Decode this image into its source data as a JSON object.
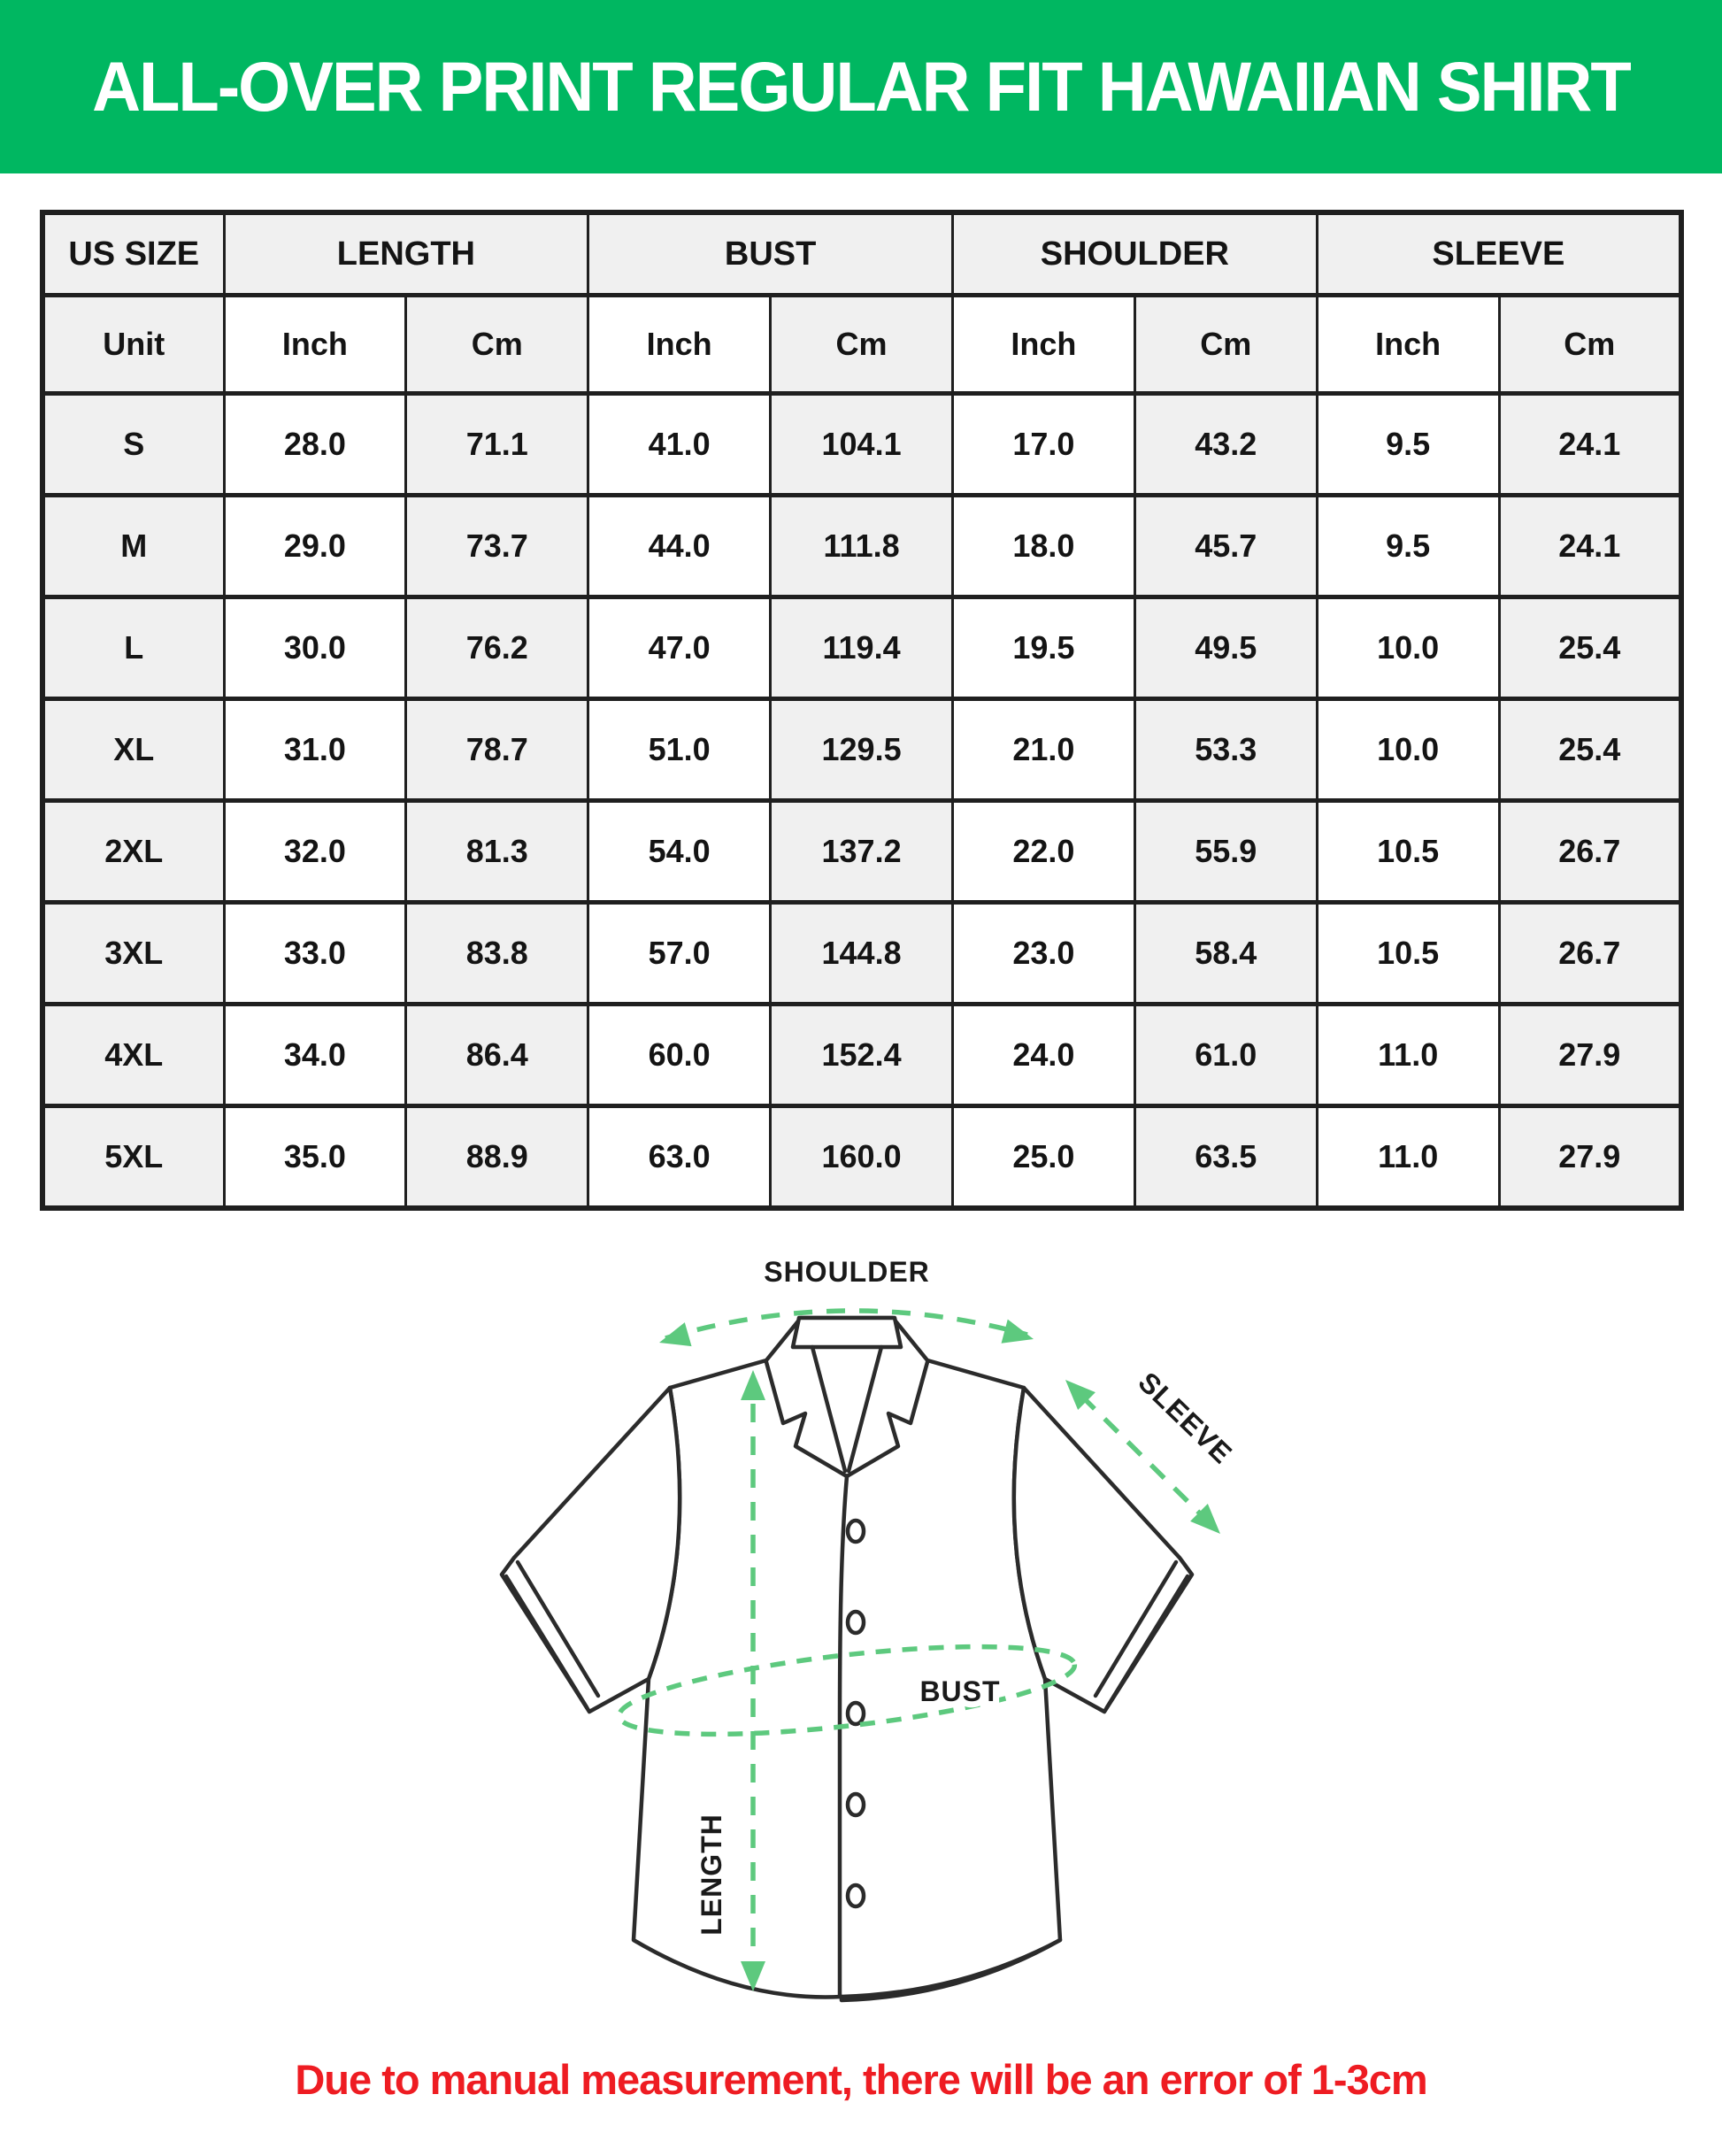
{
  "header": {
    "title": "ALL-OVER PRINT REGULAR FIT HAWAIIAN SHIRT"
  },
  "size_table": {
    "column_groups": [
      {
        "label": "US SIZE",
        "span": 1
      },
      {
        "label": "LENGTH",
        "span": 2
      },
      {
        "label": "BUST",
        "span": 2
      },
      {
        "label": "SHOULDER",
        "span": 2
      },
      {
        "label": "SLEEVE",
        "span": 2
      }
    ],
    "unit_header": [
      "Unit",
      "Inch",
      "Cm",
      "Inch",
      "Cm",
      "Inch",
      "Cm",
      "Inch",
      "Cm"
    ],
    "rows": [
      [
        "S",
        "28.0",
        "71.1",
        "41.0",
        "104.1",
        "17.0",
        "43.2",
        "9.5",
        "24.1"
      ],
      [
        "M",
        "29.0",
        "73.7",
        "44.0",
        "111.8",
        "18.0",
        "45.7",
        "9.5",
        "24.1"
      ],
      [
        "L",
        "30.0",
        "76.2",
        "47.0",
        "119.4",
        "19.5",
        "49.5",
        "10.0",
        "25.4"
      ],
      [
        "XL",
        "31.0",
        "78.7",
        "51.0",
        "129.5",
        "21.0",
        "53.3",
        "10.0",
        "25.4"
      ],
      [
        "2XL",
        "32.0",
        "81.3",
        "54.0",
        "137.2",
        "22.0",
        "55.9",
        "10.5",
        "26.7"
      ],
      [
        "3XL",
        "33.0",
        "83.8",
        "57.0",
        "144.8",
        "23.0",
        "58.4",
        "10.5",
        "26.7"
      ],
      [
        "4XL",
        "34.0",
        "86.4",
        "60.0",
        "152.4",
        "24.0",
        "61.0",
        "11.0",
        "27.9"
      ],
      [
        "5XL",
        "35.0",
        "88.9",
        "63.0",
        "160.0",
        "25.0",
        "63.5",
        "11.0",
        "27.9"
      ]
    ]
  },
  "diagram": {
    "labels": {
      "shoulder": "SHOULDER",
      "sleeve": "SLEEVE",
      "bust": "BUST",
      "length": "LENGTH"
    }
  },
  "note": {
    "text": "Due to manual measurement, there will be an error of 1-3cm"
  },
  "colors": {
    "banner_green": "#00b761",
    "arrow_green": "#5dc97e",
    "note_red": "#ee1c22"
  }
}
